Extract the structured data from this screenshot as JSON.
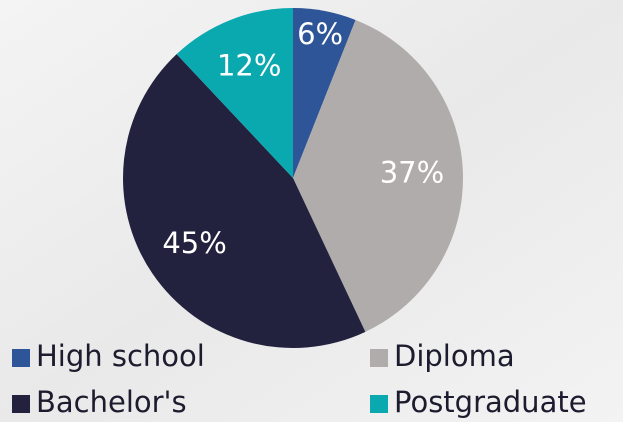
{
  "chart_data": {
    "type": "pie",
    "categories": [
      "High school",
      "Diploma",
      "Bachelor's",
      "Postgraduate"
    ],
    "values": [
      6,
      37,
      45,
      12
    ],
    "value_labels": [
      "6%",
      "37%",
      "45%",
      "12%"
    ],
    "colors": [
      "#2e5597",
      "#b0acab",
      "#22223f",
      "#0aa9b0"
    ],
    "legend": "bottom"
  }
}
